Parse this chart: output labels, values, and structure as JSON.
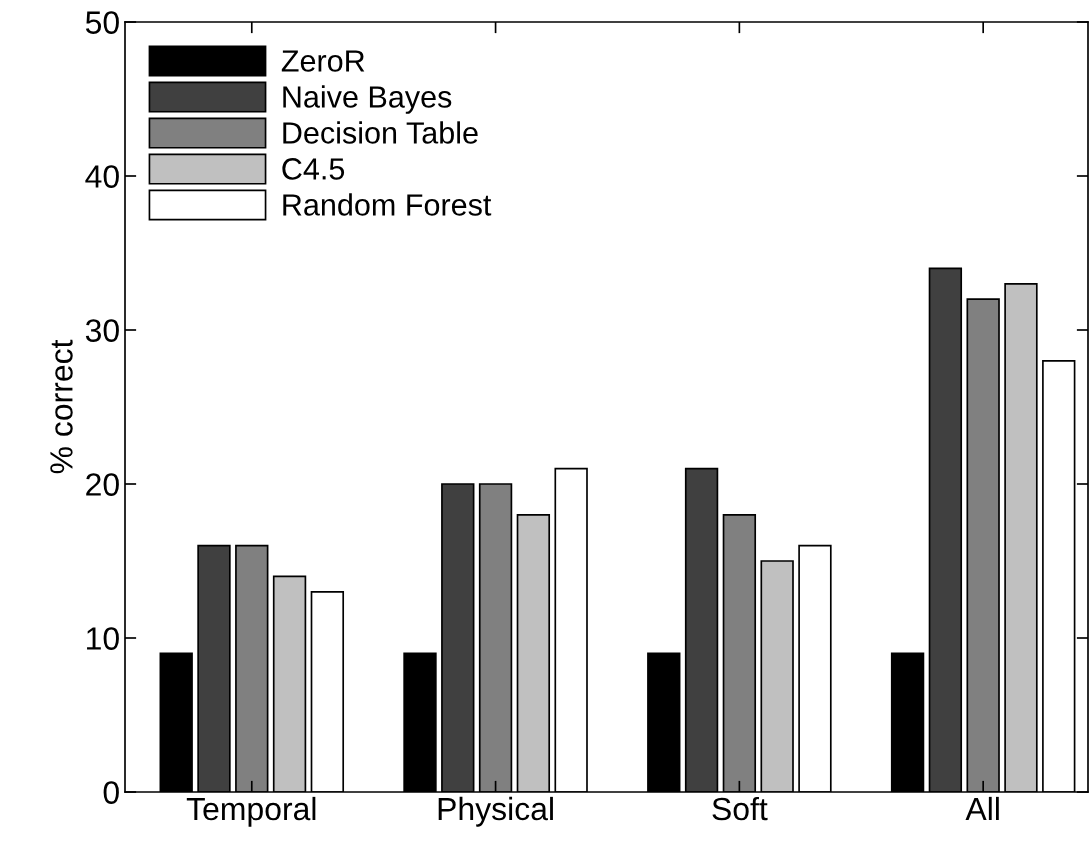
{
  "chart_data": {
    "type": "bar",
    "ylabel": "% correct",
    "categories": [
      "Temporal",
      "Physical",
      "Soft",
      "All"
    ],
    "series": [
      {
        "name": "ZeroR",
        "color": "#000000",
        "values": [
          9,
          9,
          9,
          9
        ]
      },
      {
        "name": "Naive Bayes",
        "color": "#404040",
        "values": [
          16,
          20,
          21,
          34
        ]
      },
      {
        "name": "Decision Table",
        "color": "#808080",
        "values": [
          16,
          20,
          18,
          32
        ]
      },
      {
        "name": "C4.5",
        "color": "#c0c0c0",
        "values": [
          14,
          18,
          15,
          33
        ]
      },
      {
        "name": "Random Forest",
        "color": "#ffffff",
        "values": [
          13,
          21,
          16,
          28
        ]
      }
    ],
    "ylim": [
      0,
      50
    ],
    "yticks": [
      0,
      10,
      20,
      30,
      40,
      50
    ],
    "grid": false,
    "legend": "top left"
  }
}
